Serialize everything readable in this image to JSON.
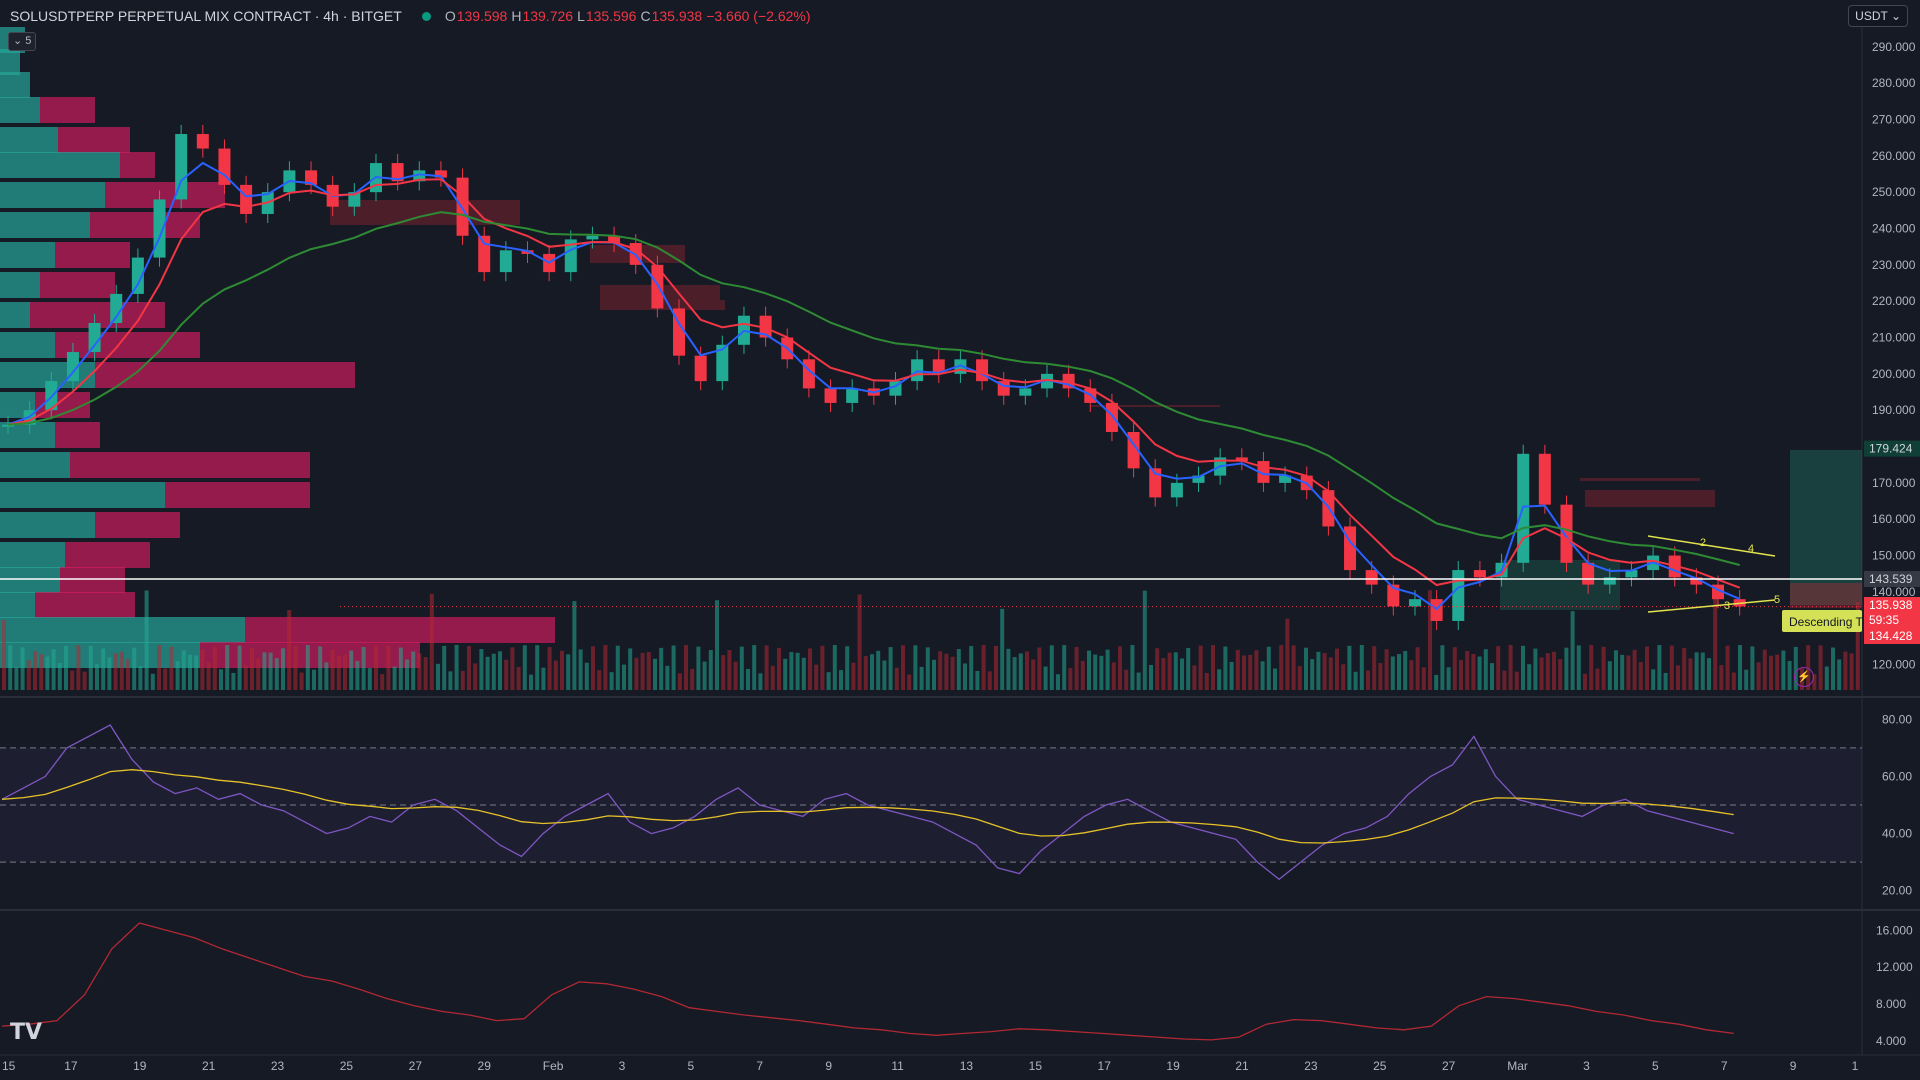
{
  "header": {
    "symbol": "SOLUSDTPERP PERPETUAL MIX CONTRACT · 4h · BITGET",
    "o_label": "O",
    "o": "139.598",
    "h_label": "H",
    "h": "139.726",
    "l_label": "L",
    "l": "135.596",
    "c_label": "C",
    "c": "135.938",
    "change": "−3.660 (−2.62%)"
  },
  "currency_button": "USDT ⌄",
  "indicator_toggle": "⌄ 5",
  "logo": "TV",
  "colors": {
    "up": "#22ab94",
    "down": "#f23645",
    "ema_fast": "#2962ff",
    "ema_mid": "#f23645",
    "ema_slow": "#2e8b34",
    "rsi": "#7e57c2",
    "rsi_ma": "#e6c229",
    "atr": "#b22833",
    "price_tag": "#f23645",
    "last_tag": "#363a45",
    "zone_tag": "#0f3f35",
    "pattern": "#e1e44d"
  },
  "chart_data": {
    "type": "candlestick",
    "symbol": "SOLUSDTPERP",
    "timeframe": "4h",
    "x_tick_labels": [
      "15",
      "17",
      "19",
      "21",
      "23",
      "25",
      "27",
      "29",
      "Feb",
      "3",
      "5",
      "7",
      "9",
      "11",
      "13",
      "15",
      "17",
      "19",
      "21",
      "23",
      "25",
      "27",
      "Mar",
      "3",
      "5",
      "7",
      "9",
      "1"
    ],
    "price_axis": {
      "ticks": [
        "290.000",
        "280.000",
        "270.000",
        "260.000",
        "250.000",
        "240.000",
        "230.000",
        "220.000",
        "210.000",
        "200.000",
        "190.000",
        "180.000",
        "170.000",
        "160.000",
        "150.000",
        "140.000",
        "130.000",
        "120.000"
      ],
      "ylim": [
        113,
        296
      ]
    },
    "price_labels": {
      "target": "179.424",
      "horizontal_line": "143.539",
      "last_price": "135.938",
      "countdown": "59:35",
      "stop": "134.428"
    },
    "horizontal_level": 143.539,
    "close_path": [
      {
        "t": 0,
        "c": 186
      },
      {
        "t": 1,
        "c": 190
      },
      {
        "t": 2,
        "c": 198
      },
      {
        "t": 3,
        "c": 206
      },
      {
        "t": 4,
        "c": 214
      },
      {
        "t": 5,
        "c": 222
      },
      {
        "t": 6,
        "c": 232
      },
      {
        "t": 7,
        "c": 248
      },
      {
        "t": 8,
        "c": 266
      },
      {
        "t": 9,
        "c": 262
      },
      {
        "t": 10,
        "c": 252
      },
      {
        "t": 11,
        "c": 244
      },
      {
        "t": 12,
        "c": 250
      },
      {
        "t": 13,
        "c": 256
      },
      {
        "t": 14,
        "c": 252
      },
      {
        "t": 15,
        "c": 246
      },
      {
        "t": 16,
        "c": 250
      },
      {
        "t": 17,
        "c": 258
      },
      {
        "t": 18,
        "c": 253
      },
      {
        "t": 19,
        "c": 256
      },
      {
        "t": 20,
        "c": 254
      },
      {
        "t": 21,
        "c": 238
      },
      {
        "t": 22,
        "c": 228
      },
      {
        "t": 23,
        "c": 234
      },
      {
        "t": 24,
        "c": 233
      },
      {
        "t": 25,
        "c": 228
      },
      {
        "t": 26,
        "c": 237
      },
      {
        "t": 27,
        "c": 238
      },
      {
        "t": 28,
        "c": 236
      },
      {
        "t": 29,
        "c": 230
      },
      {
        "t": 30,
        "c": 218
      },
      {
        "t": 31,
        "c": 205
      },
      {
        "t": 32,
        "c": 198
      },
      {
        "t": 33,
        "c": 208
      },
      {
        "t": 34,
        "c": 216
      },
      {
        "t": 35,
        "c": 210
      },
      {
        "t": 36,
        "c": 204
      },
      {
        "t": 37,
        "c": 196
      },
      {
        "t": 38,
        "c": 192
      },
      {
        "t": 39,
        "c": 196
      },
      {
        "t": 40,
        "c": 194
      },
      {
        "t": 41,
        "c": 198
      },
      {
        "t": 42,
        "c": 204
      },
      {
        "t": 43,
        "c": 200
      },
      {
        "t": 44,
        "c": 204
      },
      {
        "t": 45,
        "c": 198
      },
      {
        "t": 46,
        "c": 194
      },
      {
        "t": 47,
        "c": 196
      },
      {
        "t": 48,
        "c": 200
      },
      {
        "t": 49,
        "c": 196
      },
      {
        "t": 50,
        "c": 192
      },
      {
        "t": 51,
        "c": 184
      },
      {
        "t": 52,
        "c": 174
      },
      {
        "t": 53,
        "c": 166
      },
      {
        "t": 54,
        "c": 170
      },
      {
        "t": 55,
        "c": 172
      },
      {
        "t": 56,
        "c": 177
      },
      {
        "t": 57,
        "c": 176
      },
      {
        "t": 58,
        "c": 170
      },
      {
        "t": 59,
        "c": 172
      },
      {
        "t": 60,
        "c": 168
      },
      {
        "t": 61,
        "c": 158
      },
      {
        "t": 62,
        "c": 146
      },
      {
        "t": 63,
        "c": 142
      },
      {
        "t": 64,
        "c": 136
      },
      {
        "t": 65,
        "c": 138
      },
      {
        "t": 66,
        "c": 132
      },
      {
        "t": 67,
        "c": 146
      },
      {
        "t": 68,
        "c": 144
      },
      {
        "t": 69,
        "c": 148
      },
      {
        "t": 70,
        "c": 178
      },
      {
        "t": 71,
        "c": 164
      },
      {
        "t": 72,
        "c": 148
      },
      {
        "t": 73,
        "c": 142
      },
      {
        "t": 74,
        "c": 144
      },
      {
        "t": 75,
        "c": 146
      },
      {
        "t": 76,
        "c": 150
      },
      {
        "t": 77,
        "c": 144
      },
      {
        "t": 78,
        "c": 142
      },
      {
        "t": 79,
        "c": 138
      },
      {
        "t": 80,
        "c": 136
      }
    ],
    "moving_averages": [
      {
        "name": "EMA fast",
        "color": "#2962ff"
      },
      {
        "name": "EMA mid",
        "color": "#f23645"
      },
      {
        "name": "EMA slow",
        "color": "#2e8b34"
      }
    ],
    "volume_profile": {
      "note": "horizontal volume-by-price histogram on the left edge"
    },
    "pattern": {
      "label": "Descending T",
      "points": [
        "2",
        "3",
        "4",
        "5"
      ]
    },
    "rsi": {
      "ticks": [
        "80.00",
        "60.00",
        "40.00",
        "20.00"
      ],
      "ylim": [
        15,
        85
      ],
      "bands": [
        70,
        30
      ],
      "mid": 50,
      "values": [
        52,
        56,
        60,
        70,
        74,
        78,
        66,
        58,
        54,
        56,
        52,
        54,
        50,
        48,
        44,
        40,
        42,
        46,
        44,
        50,
        52,
        48,
        42,
        36,
        32,
        40,
        46,
        50,
        54,
        44,
        40,
        42,
        46,
        52,
        56,
        50,
        48,
        46,
        52,
        54,
        50,
        48,
        46,
        44,
        40,
        36,
        28,
        26,
        34,
        40,
        46,
        50,
        52,
        48,
        44,
        42,
        40,
        38,
        30,
        24,
        30,
        36,
        40,
        42,
        46,
        54,
        60,
        64,
        74,
        60,
        52,
        50,
        48,
        46,
        50,
        52,
        48,
        46,
        44,
        42,
        40
      ]
    },
    "atr": {
      "ticks": [
        "16.000",
        "12.000",
        "8.000",
        "4.000"
      ],
      "ylim": [
        3,
        18
      ],
      "values": [
        5.6,
        5.8,
        6.2,
        9,
        14,
        16.8,
        16,
        15.2,
        14,
        13,
        12,
        11,
        10.5,
        9.6,
        8.6,
        7.8,
        7.2,
        6.8,
        6.2,
        6.4,
        9,
        10.4,
        10.2,
        9.6,
        8.8,
        7.6,
        7.2,
        6.8,
        6.5,
        6.2,
        5.8,
        5.4,
        5.2,
        4.8,
        4.6,
        4.8,
        5,
        5.3,
        5.2,
        5,
        4.8,
        4.6,
        4.4,
        4.2,
        4.1,
        4.4,
        5.8,
        6.3,
        6.2,
        5.8,
        5.4,
        5.2,
        5.6,
        7.8,
        8.8,
        8.6,
        8.2,
        7.8,
        7.2,
        6.8,
        6.2,
        5.8,
        5.2,
        4.8
      ]
    }
  }
}
